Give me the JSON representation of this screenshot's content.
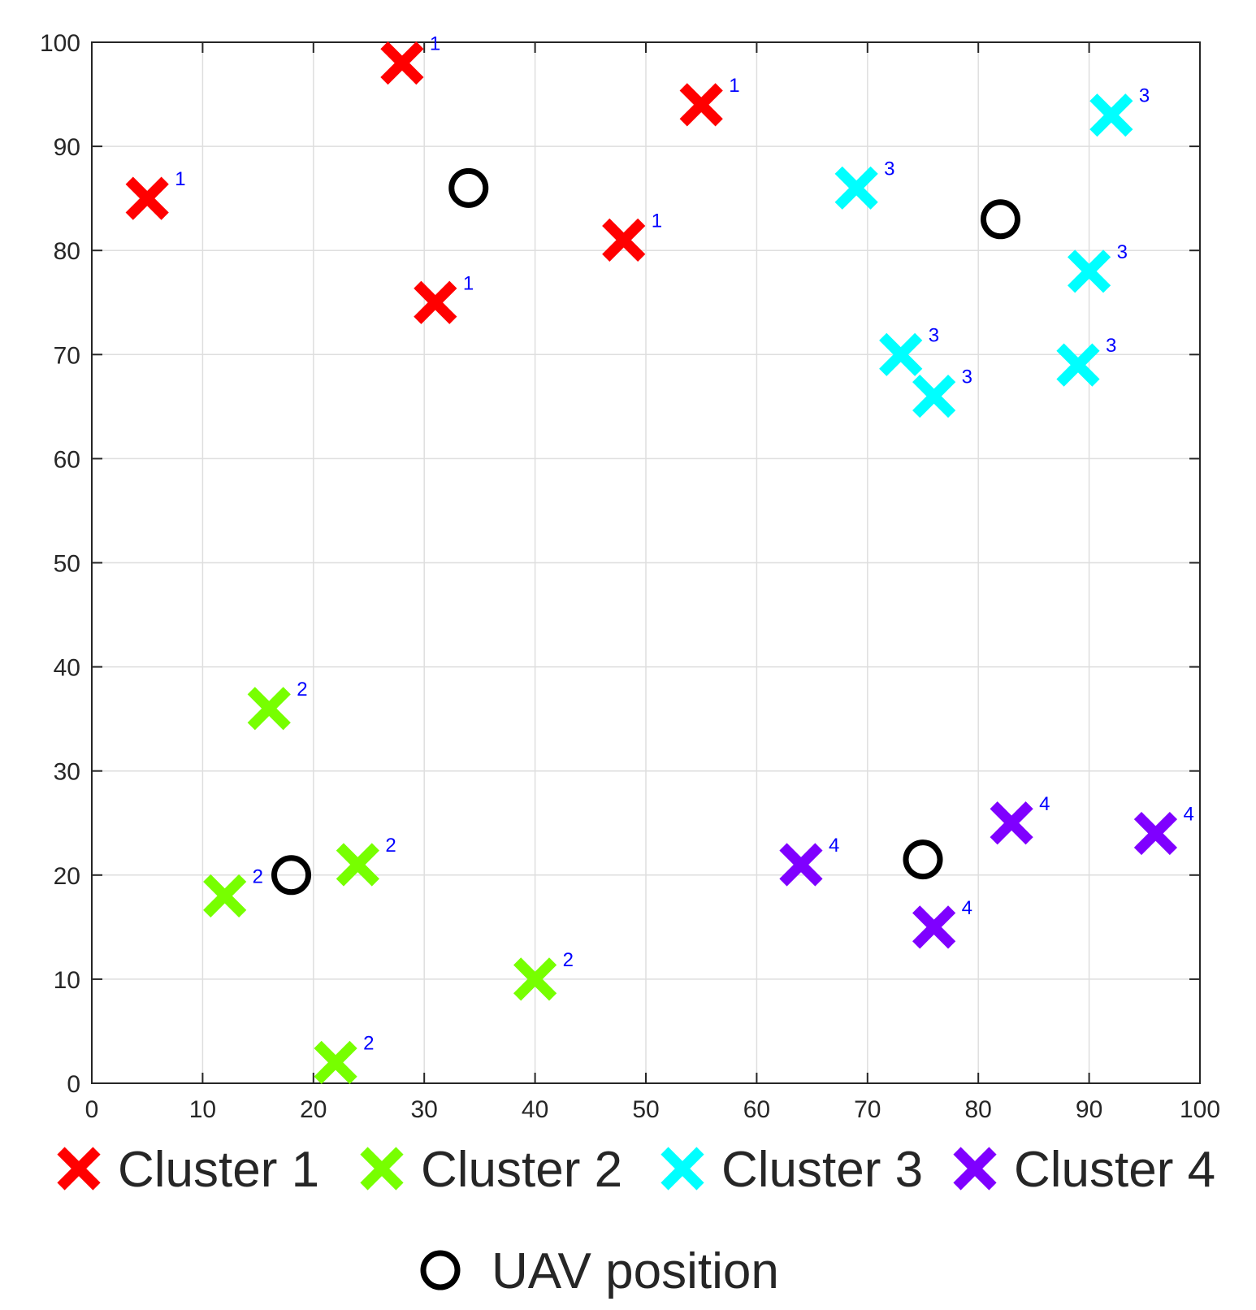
{
  "chart_data": {
    "type": "scatter",
    "title": "",
    "xlabel": "",
    "ylabel": "",
    "xlim": [
      0,
      100
    ],
    "ylim": [
      0,
      100
    ],
    "xticks": [
      0,
      10,
      20,
      30,
      40,
      50,
      60,
      70,
      80,
      90,
      100
    ],
    "yticks": [
      0,
      10,
      20,
      30,
      40,
      50,
      60,
      70,
      80,
      90,
      100
    ],
    "grid": true,
    "legend_position": "bottom",
    "series": [
      {
        "name": "Cluster 1",
        "marker": "x",
        "color": "#ff0000",
        "label": "1",
        "points": [
          [
            5,
            85
          ],
          [
            28,
            98
          ],
          [
            31,
            75
          ],
          [
            48,
            81
          ],
          [
            55,
            94
          ]
        ]
      },
      {
        "name": "Cluster 2",
        "marker": "x",
        "color": "#77ff00",
        "label": "2",
        "points": [
          [
            16,
            36
          ],
          [
            12,
            18
          ],
          [
            24,
            21
          ],
          [
            22,
            2
          ],
          [
            40,
            10
          ]
        ]
      },
      {
        "name": "Cluster 3",
        "marker": "x",
        "color": "#00ffff",
        "label": "3",
        "points": [
          [
            69,
            86
          ],
          [
            92,
            93
          ],
          [
            90,
            78
          ],
          [
            73,
            70
          ],
          [
            76,
            66
          ],
          [
            89,
            69
          ]
        ]
      },
      {
        "name": "Cluster 4",
        "marker": "x",
        "color": "#7f00ff",
        "label": "4",
        "points": [
          [
            64,
            21
          ],
          [
            83,
            25
          ],
          [
            96,
            24
          ],
          [
            76,
            15
          ]
        ]
      },
      {
        "name": "UAV position",
        "marker": "circle",
        "color": "#000000",
        "label": "",
        "points": [
          [
            34,
            86
          ],
          [
            82,
            83
          ],
          [
            18,
            20
          ],
          [
            75,
            21.5
          ]
        ]
      }
    ]
  }
}
